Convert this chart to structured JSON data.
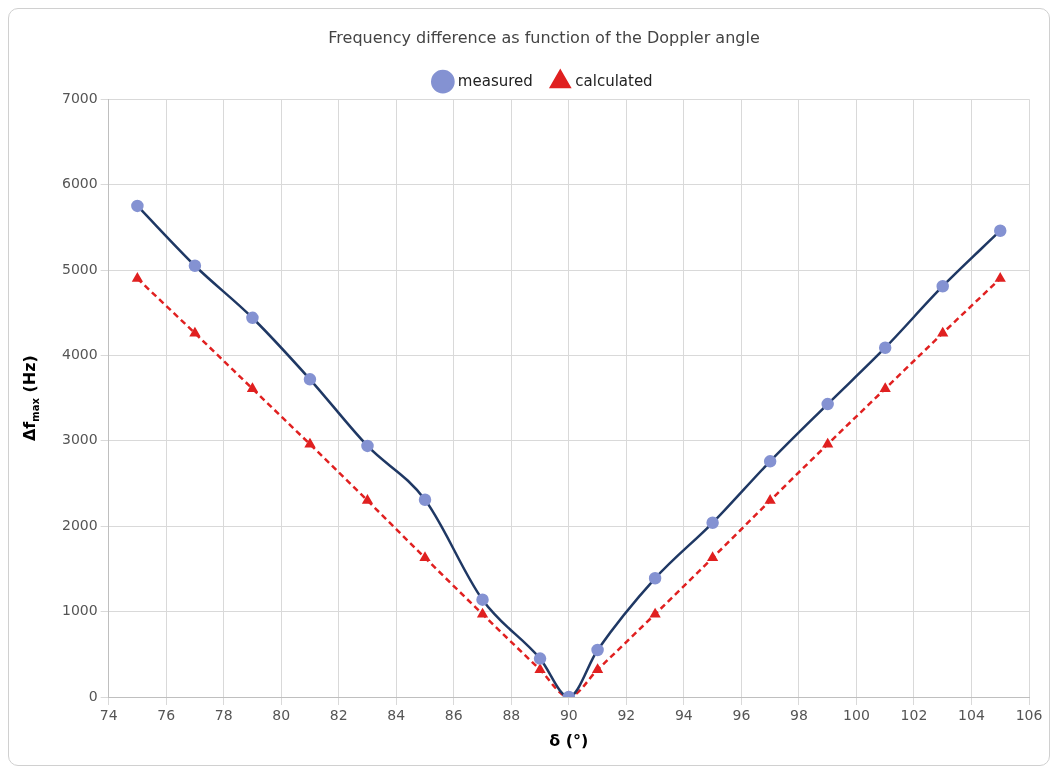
{
  "chart_data": {
    "type": "line",
    "title": "Frequency difference as function of the Doppler angle",
    "xlabel": "δ (°)",
    "ylabel": "Δf$_{max}$ (Hz)",
    "x": [
      75,
      77,
      79,
      81,
      83,
      85,
      87,
      89,
      90,
      91,
      93,
      95,
      97,
      99,
      101,
      103,
      105
    ],
    "series": [
      {
        "name": "measured",
        "color": "#1f3864",
        "marker": "circle",
        "line_style": "solid",
        "values": [
          5750,
          5050,
          4440,
          3720,
          2940,
          2310,
          1140,
          450,
          0,
          550,
          1390,
          2040,
          2760,
          3430,
          4090,
          4810,
          5460
        ]
      },
      {
        "name": "calculated",
        "color": "#e02020",
        "marker": "triangle",
        "line_style": "dashed",
        "values": [
          4900,
          4260,
          3610,
          2960,
          2300,
          1630,
          970,
          320,
          0,
          320,
          970,
          1630,
          2300,
          2960,
          3610,
          4260,
          4900
        ]
      }
    ],
    "xlim": [
      74,
      106
    ],
    "xticks": [
      74,
      76,
      78,
      80,
      82,
      84,
      86,
      88,
      90,
      92,
      94,
      96,
      98,
      100,
      102,
      104,
      106
    ],
    "ylim": [
      0,
      7000
    ],
    "yticks": [
      0,
      1000,
      2000,
      3000,
      4000,
      5000,
      6000,
      7000
    ],
    "grid": true,
    "legend": "top"
  }
}
